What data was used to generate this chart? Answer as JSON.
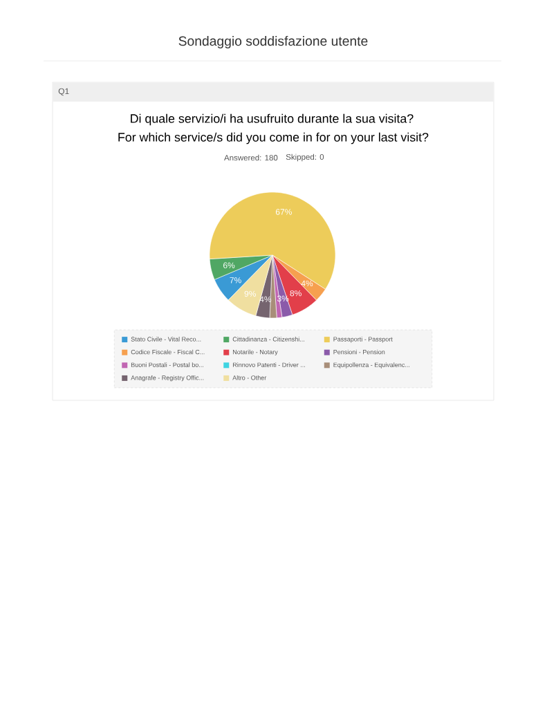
{
  "chart_data": {
    "type": "pie",
    "title": "Di quale servizio/i ha usufruito durante la sua visita?",
    "subtitle": "For which service/s did you come in for on your last visit?",
    "annotations": [
      "Sondaggio soddisfazione utente",
      "Q1",
      "Answered: 180",
      "Skipped: 0"
    ],
    "categories": [
      "Stato Civile - Vital Reco...",
      "Cittadinanza - Citizenshi...",
      "Passaporti - Passport",
      "Codice Fiscale - Fiscal C...",
      "Notarile - Notary",
      "Pensioni - Pension",
      "Buoni Postali - Postal bo...",
      "Rinnovo Patenti - Driver ...",
      "Equipollenza - Equivalenc...",
      "Anagrafe - Registry Offic...",
      "Altro - Other"
    ],
    "values": [
      7,
      6,
      67,
      4,
      8,
      3,
      1.5,
      0,
      2,
      4,
      9
    ],
    "value_labels": [
      "7%",
      "6%",
      "67%",
      "4%",
      "8%",
      "3%",
      null,
      null,
      null,
      "4%",
      "9%"
    ],
    "colors": [
      "#3a9ad5",
      "#50a764",
      "#edcc5a",
      "#f6a04f",
      "#e23f4a",
      "#8b5baa",
      "#c166b2",
      "#3fd4e1",
      "#a88e79",
      "#75646f",
      "#f0dfa0"
    ],
    "legend": "bottom"
  }
}
